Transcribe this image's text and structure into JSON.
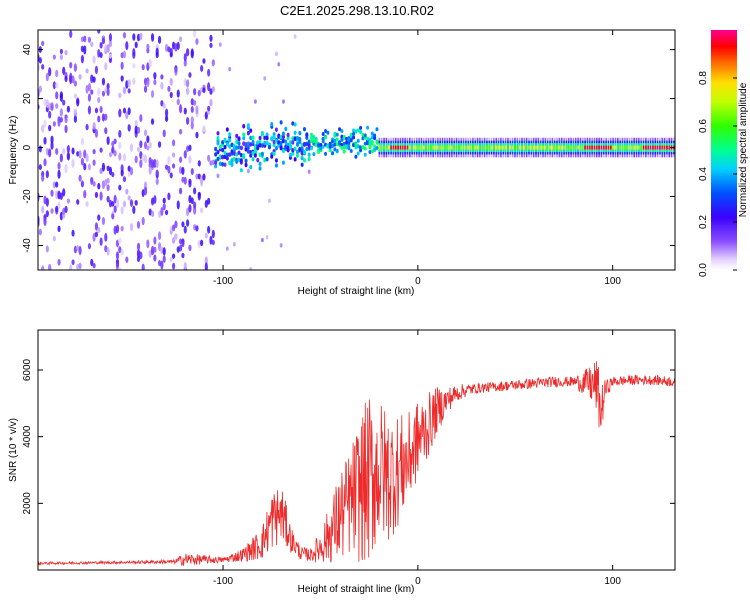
{
  "title": "C2E1.2025.298.13.10.R02",
  "colors": {
    "snr_line": "#ee2a2a",
    "axes": "#000000",
    "background": "#ffffff"
  },
  "chart_data": [
    {
      "type": "heatmap",
      "name": "spectrogram",
      "xlabel": "Height of straight line (km)",
      "ylabel": "Frequency (Hz)",
      "xlim": [
        -195,
        132
      ],
      "ylim": [
        -50,
        48
      ],
      "xticks": [
        -100,
        0,
        100
      ],
      "yticks": [
        -40,
        -20,
        0,
        20,
        40
      ],
      "grid": false,
      "colorbar": {
        "label": "Normalized spectral amplitude",
        "range": [
          0,
          1
        ],
        "ticks": [
          0.0,
          0.2,
          0.4,
          0.6,
          0.8
        ],
        "colormap": "rainbow (white-violet-blue-cyan-green-yellow-red-magenta)"
      },
      "description_bands": [
        {
          "x_from": -195,
          "x_to": -105,
          "level": 0.1,
          "note": "broadband noise"
        },
        {
          "x_from": -105,
          "x_to": -20,
          "freq_center": 0,
          "freq_width": 8,
          "level": 0.3
        },
        {
          "x_from": -20,
          "x_to": 132,
          "freq_center": 0,
          "freq_width": 3,
          "level": 0.5
        }
      ]
    },
    {
      "type": "line",
      "name": "snr",
      "xlabel": "Height of straight line (km)",
      "ylabel": "SNR (10 * v/v)",
      "xlim": [
        -195,
        132
      ],
      "ylim": [
        0,
        7200
      ],
      "xticks": [
        -100,
        0,
        100
      ],
      "yticks": [
        2000,
        4000,
        6000
      ],
      "grid": false,
      "envelope_x": [
        -195,
        -150,
        -125,
        -120,
        -100,
        -90,
        -80,
        -75,
        -70,
        -65,
        -60,
        -55,
        -50,
        -45,
        -40,
        -35,
        -30,
        -25,
        -20,
        -15,
        -10,
        -5,
        0,
        5,
        10,
        15,
        20,
        25,
        30,
        40,
        50,
        60,
        70,
        80,
        88,
        92,
        94,
        96,
        100,
        110,
        120,
        132
      ],
      "envelope_mean": [
        200,
        230,
        250,
        320,
        300,
        450,
        800,
        1500,
        1700,
        900,
        500,
        450,
        700,
        1100,
        1600,
        2000,
        2400,
        2700,
        3000,
        2800,
        3000,
        3300,
        3900,
        4300,
        4800,
        5100,
        5300,
        5400,
        5450,
        5500,
        5550,
        5600,
        5650,
        5650,
        5600,
        5500,
        4700,
        5400,
        5650,
        5700,
        5700,
        5650
      ],
      "envelope_noise": [
        40,
        40,
        60,
        200,
        80,
        200,
        500,
        900,
        900,
        400,
        200,
        200,
        500,
        900,
        1400,
        1600,
        2200,
        2600,
        2200,
        2000,
        1700,
        1400,
        1200,
        1000,
        700,
        400,
        250,
        200,
        150,
        150,
        150,
        160,
        160,
        150,
        500,
        900,
        900,
        300,
        150,
        150,
        150,
        150
      ]
    }
  ]
}
